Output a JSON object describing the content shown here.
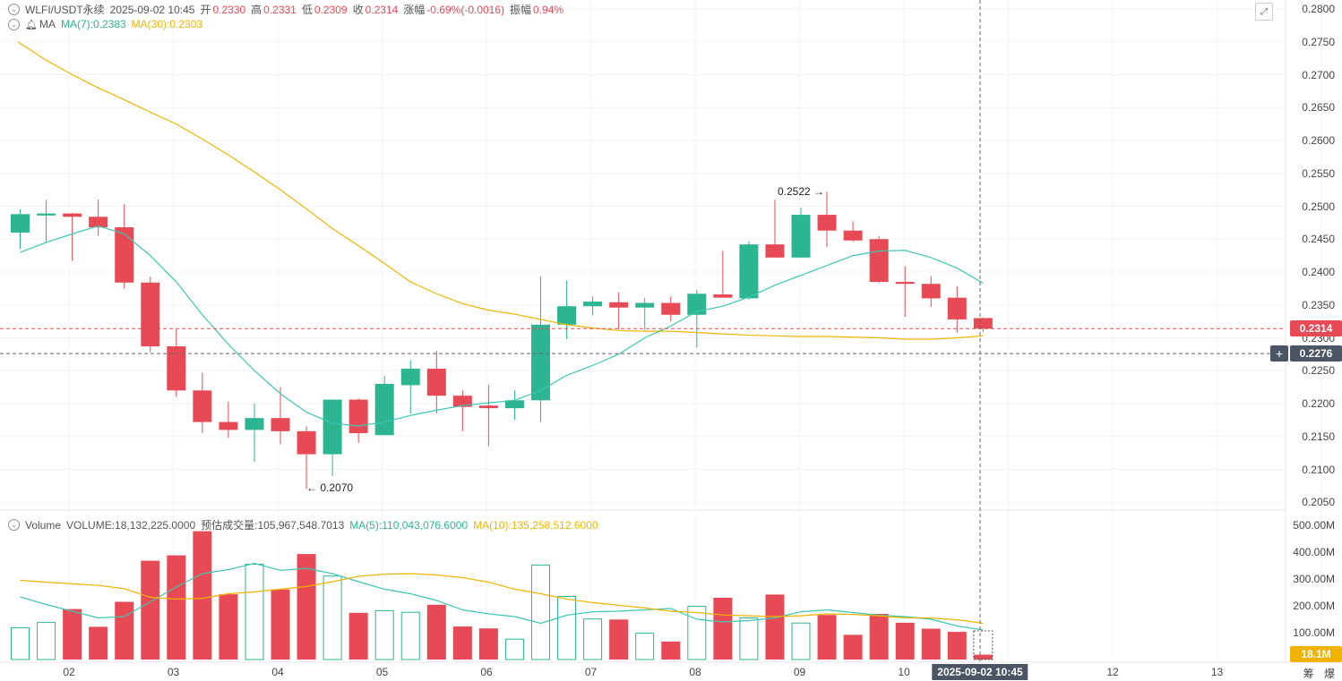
{
  "header": {
    "symbol": "WLFI/USDT永续",
    "datetime": "2025-09-02 10:45",
    "open_label": "开",
    "open": "0.2330",
    "high_label": "高",
    "high": "0.2331",
    "low_label": "低",
    "low": "0.2309",
    "close_label": "收",
    "close": "0.2314",
    "change_label": "涨幅",
    "change": "-0.69%(-0.0016)",
    "amp_label": "振幅",
    "amp": "0.94%"
  },
  "ma_line": {
    "label": "MA",
    "ma7": "MA(7):0.2383",
    "ma30": "MA(30):0.2303"
  },
  "volume_line": {
    "label": "Volume",
    "volume": "VOLUME:18,132,225.0000",
    "est": "预估成交量:105,967,548.7013",
    "ma5": "MA(5):110,043,076.6000",
    "ma10": "MA(10):135,258,512.6000"
  },
  "price_axis": [
    "0.2800",
    "0.2750",
    "0.2700",
    "0.2650",
    "0.2600",
    "0.2550",
    "0.2500",
    "0.2450",
    "0.2400",
    "0.2350",
    "0.2300",
    "0.2250",
    "0.2200",
    "0.2150",
    "0.2100",
    "0.2050"
  ],
  "volume_axis": [
    "500.00M",
    "400.00M",
    "300.00M",
    "200.00M",
    "100.00M"
  ],
  "x_axis": [
    "02",
    "03",
    "04",
    "05",
    "06",
    "07",
    "08",
    "09",
    "10",
    "12",
    "13"
  ],
  "current_price_tag": "0.2314",
  "crosshair_price_tag": "0.2276",
  "crosshair_date": "2025-09-02 10:45",
  "volume_tag": "18.1M",
  "high_annotation": "0.2522 →",
  "low_annotation": "← 0.2070",
  "bottom_icons": {
    "a": "筹",
    "b": "爆"
  },
  "colors": {
    "up": "#2bb591",
    "down": "#e84a55",
    "ma7": "#3cc7b2",
    "ma30": "#f0b400",
    "vol_tag": "#f0b400"
  },
  "chart_data": {
    "type": "candlestick",
    "title": "WLFI/USDT永续",
    "y_range": [
      0.203,
      0.281
    ],
    "volume_range": [
      0,
      540
    ],
    "volume_unit": "M",
    "candles": [
      {
        "o": 0.246,
        "h": 0.2495,
        "l": 0.2435,
        "c": 0.2488
      },
      {
        "o": 0.2486,
        "h": 0.251,
        "l": 0.2445,
        "c": 0.2489
      },
      {
        "o": 0.2489,
        "h": 0.249,
        "l": 0.2417,
        "c": 0.2484
      },
      {
        "o": 0.2484,
        "h": 0.251,
        "l": 0.2455,
        "c": 0.2468
      },
      {
        "o": 0.2468,
        "h": 0.2503,
        "l": 0.2375,
        "c": 0.2384
      },
      {
        "o": 0.2384,
        "h": 0.2393,
        "l": 0.2278,
        "c": 0.2287
      },
      {
        "o": 0.2287,
        "h": 0.2313,
        "l": 0.221,
        "c": 0.222
      },
      {
        "o": 0.222,
        "h": 0.2247,
        "l": 0.2155,
        "c": 0.2172
      },
      {
        "o": 0.2172,
        "h": 0.2203,
        "l": 0.2148,
        "c": 0.216
      },
      {
        "o": 0.216,
        "h": 0.22,
        "l": 0.2111,
        "c": 0.2178
      },
      {
        "o": 0.2178,
        "h": 0.2225,
        "l": 0.2138,
        "c": 0.2158
      },
      {
        "o": 0.2158,
        "h": 0.2165,
        "l": 0.207,
        "c": 0.2123
      },
      {
        "o": 0.2123,
        "h": 0.2206,
        "l": 0.209,
        "c": 0.2206
      },
      {
        "o": 0.2206,
        "h": 0.2208,
        "l": 0.214,
        "c": 0.2155
      },
      {
        "o": 0.2152,
        "h": 0.2242,
        "l": 0.2152,
        "c": 0.223
      },
      {
        "o": 0.2228,
        "h": 0.2266,
        "l": 0.2185,
        "c": 0.2253
      },
      {
        "o": 0.2253,
        "h": 0.228,
        "l": 0.2185,
        "c": 0.2212
      },
      {
        "o": 0.2212,
        "h": 0.222,
        "l": 0.2158,
        "c": 0.2195
      },
      {
        "o": 0.2197,
        "h": 0.2228,
        "l": 0.2135,
        "c": 0.2193
      },
      {
        "o": 0.2193,
        "h": 0.222,
        "l": 0.2175,
        "c": 0.2205
      },
      {
        "o": 0.2205,
        "h": 0.2393,
        "l": 0.2172,
        "c": 0.232
      },
      {
        "o": 0.232,
        "h": 0.2387,
        "l": 0.2298,
        "c": 0.2348
      },
      {
        "o": 0.2348,
        "h": 0.2363,
        "l": 0.2334,
        "c": 0.2355
      },
      {
        "o": 0.2354,
        "h": 0.2369,
        "l": 0.2313,
        "c": 0.2346
      },
      {
        "o": 0.2346,
        "h": 0.2361,
        "l": 0.2312,
        "c": 0.2353
      },
      {
        "o": 0.2353,
        "h": 0.2363,
        "l": 0.2325,
        "c": 0.2335
      },
      {
        "o": 0.2335,
        "h": 0.2373,
        "l": 0.2285,
        "c": 0.2367
      },
      {
        "o": 0.2366,
        "h": 0.2432,
        "l": 0.2361,
        "c": 0.2361
      },
      {
        "o": 0.236,
        "h": 0.2447,
        "l": 0.2358,
        "c": 0.2442
      },
      {
        "o": 0.2442,
        "h": 0.251,
        "l": 0.2422,
        "c": 0.2422
      },
      {
        "o": 0.2422,
        "h": 0.2498,
        "l": 0.2422,
        "c": 0.2487
      },
      {
        "o": 0.2487,
        "h": 0.2522,
        "l": 0.2438,
        "c": 0.2463
      },
      {
        "o": 0.2463,
        "h": 0.2477,
        "l": 0.2446,
        "c": 0.2448
      },
      {
        "o": 0.245,
        "h": 0.2455,
        "l": 0.2383,
        "c": 0.2385
      },
      {
        "o": 0.2385,
        "h": 0.2409,
        "l": 0.2332,
        "c": 0.2382
      },
      {
        "o": 0.2382,
        "h": 0.2394,
        "l": 0.2347,
        "c": 0.236
      },
      {
        "o": 0.2361,
        "h": 0.2378,
        "l": 0.2308,
        "c": 0.2328
      },
      {
        "o": 0.233,
        "h": 0.2331,
        "l": 0.2309,
        "c": 0.2314
      }
    ],
    "ma7": [
      0.243,
      0.2445,
      0.2458,
      0.247,
      0.2458,
      0.2425,
      0.2385,
      0.2335,
      0.229,
      0.225,
      0.2215,
      0.2187,
      0.217,
      0.2166,
      0.2172,
      0.2182,
      0.219,
      0.2197,
      0.2201,
      0.2205,
      0.222,
      0.2243,
      0.2258,
      0.2275,
      0.23,
      0.2318,
      0.234,
      0.2348,
      0.2362,
      0.238,
      0.2395,
      0.241,
      0.2425,
      0.2432,
      0.2433,
      0.2422,
      0.2406,
      0.2383
    ],
    "ma30": [
      0.275,
      0.2722,
      0.27,
      0.268,
      0.2662,
      0.2643,
      0.2625,
      0.2602,
      0.2578,
      0.2552,
      0.2525,
      0.2496,
      0.2466,
      0.244,
      0.2413,
      0.2385,
      0.2367,
      0.2352,
      0.2342,
      0.2336,
      0.2328,
      0.232,
      0.2315,
      0.2311,
      0.231,
      0.231,
      0.2308,
      0.2306,
      0.2304,
      0.2303,
      0.2302,
      0.2302,
      0.2301,
      0.23,
      0.2298,
      0.2298,
      0.23,
      0.2303
    ],
    "volumes": [
      118,
      138,
      188,
      122,
      215,
      368,
      388,
      478,
      243,
      355,
      261,
      393,
      311,
      174,
      182,
      176,
      204,
      123,
      116,
      76,
      352,
      235,
      151,
      149,
      98,
      67,
      198,
      230,
      155,
      242,
      136,
      166,
      92,
      170,
      137,
      115,
      103,
      18.1
    ],
    "vol_ma5": [
      233,
      205,
      180,
      155,
      160,
      215,
      270,
      320,
      335,
      358,
      332,
      340,
      320,
      290,
      262,
      245,
      220,
      185,
      170,
      160,
      135,
      165,
      178,
      180,
      185,
      190,
      150,
      140,
      145,
      155,
      178,
      185,
      175,
      165,
      160,
      150,
      125,
      110
    ],
    "vol_ma10": [
      295,
      288,
      282,
      276,
      264,
      232,
      225,
      228,
      245,
      252,
      262,
      272,
      290,
      310,
      318,
      320,
      315,
      305,
      288,
      262,
      245,
      225,
      212,
      202,
      192,
      180,
      175,
      166,
      163,
      160,
      163,
      170,
      168,
      163,
      155,
      155,
      148,
      135
    ]
  }
}
